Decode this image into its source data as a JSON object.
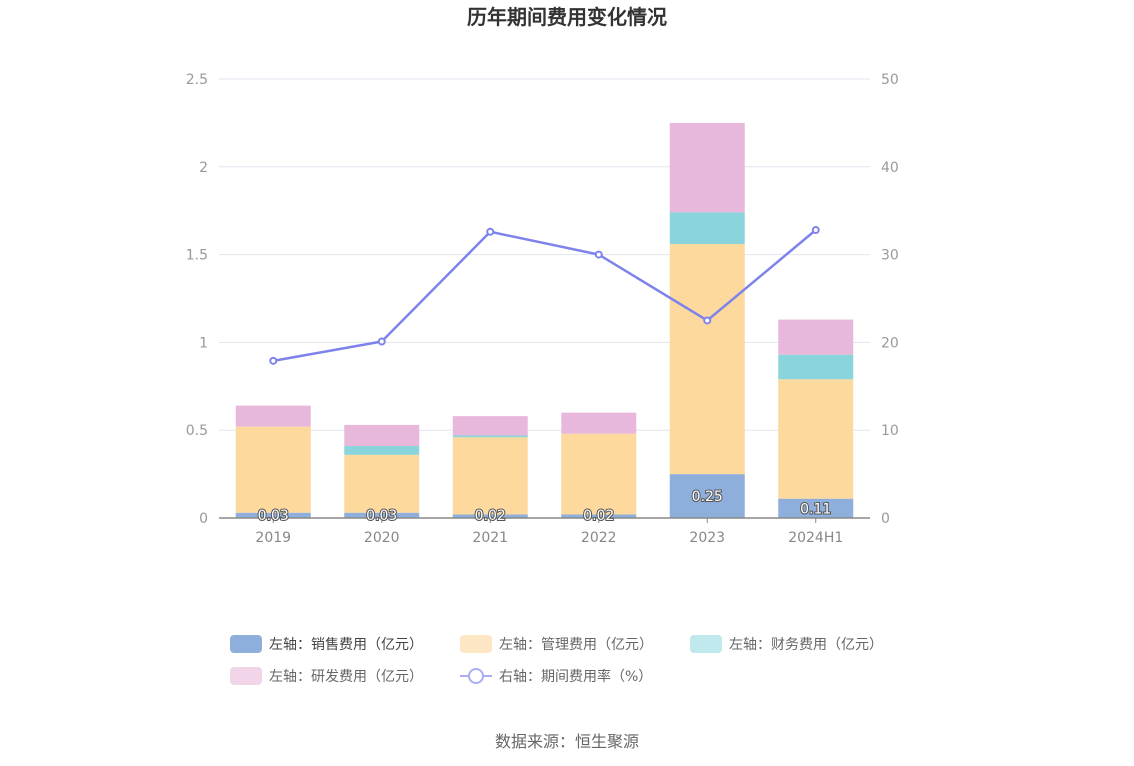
{
  "chart_data": {
    "type": "bar",
    "title": "历年期间费用变化情况",
    "categories": [
      "2019",
      "2020",
      "2021",
      "2022",
      "2023",
      "2024H1"
    ],
    "left_axis": {
      "min": 0,
      "max": 2.5,
      "ticks": [
        "0",
        "0.5",
        "1",
        "1.5",
        "2",
        "2.5"
      ]
    },
    "right_axis": {
      "min": 0,
      "max": 50,
      "ticks": [
        "0",
        "10",
        "20",
        "30",
        "40",
        "50"
      ]
    },
    "stacked": true,
    "series": [
      {
        "name": "左轴：销售费用（亿元）",
        "axis": "left",
        "type": "bar",
        "color": "#8eaedb",
        "values": [
          0.03,
          0.03,
          0.02,
          0.02,
          0.25,
          0.11
        ],
        "labels": [
          "0.03",
          "0.03",
          "0.02",
          "0.02",
          "0.25",
          "0.11"
        ]
      },
      {
        "name": "左轴：管理费用（亿元）",
        "axis": "left",
        "type": "bar",
        "color": "#fdd99d",
        "values": [
          0.49,
          0.33,
          0.44,
          0.46,
          1.31,
          0.68
        ]
      },
      {
        "name": "左轴：财务费用（亿元）",
        "axis": "left",
        "type": "bar",
        "color": "#8ad5db",
        "values": [
          0.0,
          0.05,
          0.01,
          0.0,
          0.18,
          0.14
        ]
      },
      {
        "name": "左轴：研发费用（亿元）",
        "axis": "left",
        "type": "bar",
        "color": "#e8b8dc",
        "values": [
          0.12,
          0.12,
          0.11,
          0.12,
          0.51,
          0.2
        ]
      },
      {
        "name": "右轴：期间费用率（%）",
        "axis": "right",
        "type": "line",
        "color": "#7e83ec",
        "values": [
          17.9,
          20.1,
          32.6,
          30.0,
          22.5,
          32.8
        ]
      }
    ],
    "legend_placement": "bottom",
    "grid": true
  },
  "legend_colors": [
    "#8eaedb",
    "#fde6c3",
    "#bfe9ec",
    "#f3d5ea",
    "#a9adf2"
  ],
  "source": "数据来源：恒生聚源"
}
